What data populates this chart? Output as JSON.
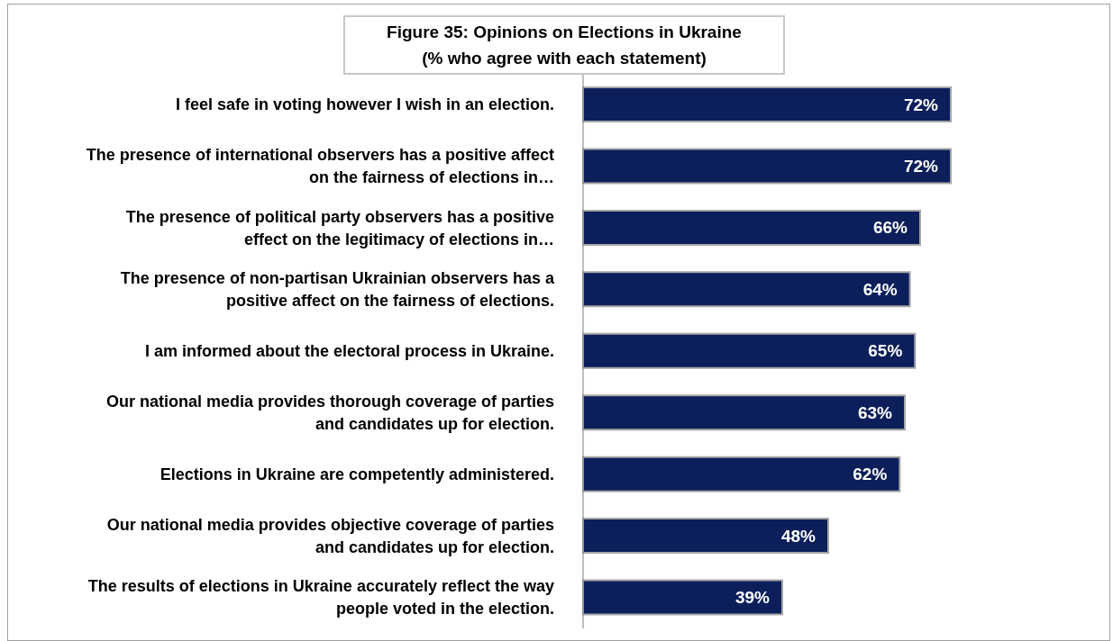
{
  "chart_data": {
    "type": "bar",
    "orientation": "horizontal",
    "title": "Figure 35: Opinions on Elections in Ukraine",
    "subtitle": "(% who agree with each statement)",
    "categories": [
      "I feel safe in voting however I wish in an election.",
      "The presence of international observers has a positive affect on the fairness of elections in…",
      "The presence of political party observers has a positive effect on the legitimacy of elections in…",
      "The presence of non-partisan Ukrainian observers has a positive affect on the fairness of elections.",
      "I am informed about the electoral process in Ukraine.",
      "Our national media provides thorough coverage of parties and candidates up for election.",
      "Elections in Ukraine are competently administered.",
      "Our national media provides objective coverage of parties and candidates up for election.",
      "The results of elections in Ukraine accurately reflect the way people voted in the election."
    ],
    "values": [
      72,
      72,
      66,
      64,
      65,
      63,
      62,
      48,
      39
    ],
    "value_labels": [
      "72%",
      "72%",
      "66%",
      "64%",
      "65%",
      "63%",
      "62%",
      "48%",
      "39%"
    ],
    "color": "#0c1f5b",
    "grid": false,
    "legend": false
  }
}
